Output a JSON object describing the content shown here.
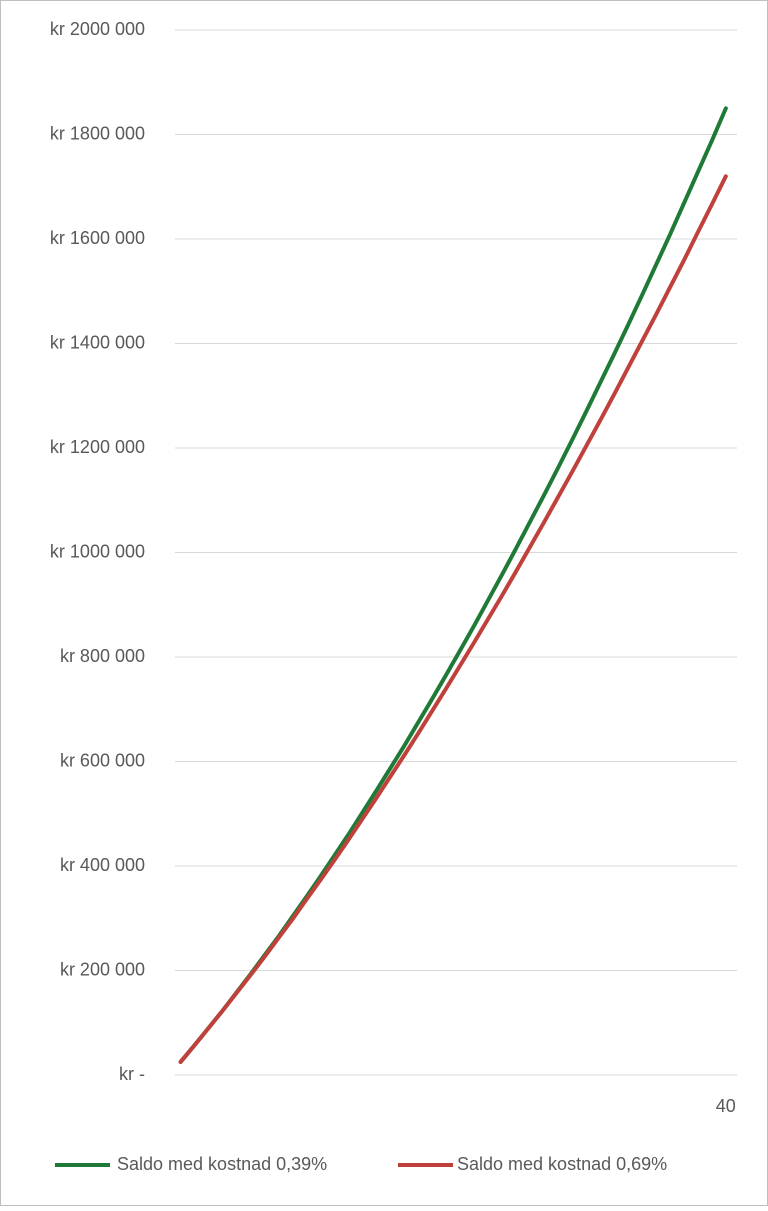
{
  "chart_data": {
    "type": "line",
    "x": [
      1,
      2,
      3,
      4,
      5,
      6,
      7,
      8,
      9,
      10,
      11,
      12,
      13,
      14,
      15,
      16,
      17,
      18,
      19,
      20,
      21,
      22,
      23,
      24,
      25,
      26,
      27,
      28,
      29,
      30,
      31,
      32,
      33,
      34,
      35,
      36,
      37,
      38,
      39,
      40
    ],
    "xlim": [
      0.6,
      40.8
    ],
    "xticks": [
      40
    ],
    "ylim": [
      0,
      2000000
    ],
    "yticks": [
      {
        "value": 0,
        "label": "kr -"
      },
      {
        "value": 200000,
        "label": "kr 200 000"
      },
      {
        "value": 400000,
        "label": "kr 400 000"
      },
      {
        "value": 600000,
        "label": "kr 600 000"
      },
      {
        "value": 800000,
        "label": "kr 800 000"
      },
      {
        "value": 1000000,
        "label": "kr 1000 000"
      },
      {
        "value": 1200000,
        "label": "kr 1200 000"
      },
      {
        "value": 1400000,
        "label": "kr 1400 000"
      },
      {
        "value": 1600000,
        "label": "kr 1600 000"
      },
      {
        "value": 1800000,
        "label": "kr 1800 000"
      },
      {
        "value": 2000000,
        "label": "kr 2000 000"
      }
    ],
    "grid": true,
    "legend": "bottom",
    "series": [
      {
        "name": "Saldo med kostnad 0,39%",
        "color": "#1e7a36",
        "values": [
          25000,
          57000,
          90000,
          123000,
          158000,
          193000,
          229000,
          265000,
          303000,
          341000,
          380000,
          420000,
          460000,
          502000,
          544000,
          587000,
          630000,
          675000,
          720000,
          766000,
          813000,
          860000,
          909000,
          958000,
          1008000,
          1059000,
          1110000,
          1162000,
          1215000,
          1269000,
          1324000,
          1379000,
          1435000,
          1492000,
          1550000,
          1608000,
          1668000,
          1728000,
          1788000,
          1850000
        ]
      },
      {
        "name": "Saldo med kostnad 0,69%",
        "color": "#c0413b",
        "values": [
          25000,
          57000,
          90000,
          123000,
          157000,
          191000,
          226000,
          262000,
          298000,
          336000,
          373000,
          411000,
          450000,
          490000,
          530000,
          571000,
          612000,
          654000,
          697000,
          740000,
          784000,
          828000,
          873000,
          918000,
          964000,
          1011000,
          1058000,
          1106000,
          1154000,
          1203000,
          1252000,
          1302000,
          1353000,
          1404000,
          1455000,
          1507000,
          1559000,
          1613000,
          1666000,
          1720000
        ]
      }
    ]
  }
}
